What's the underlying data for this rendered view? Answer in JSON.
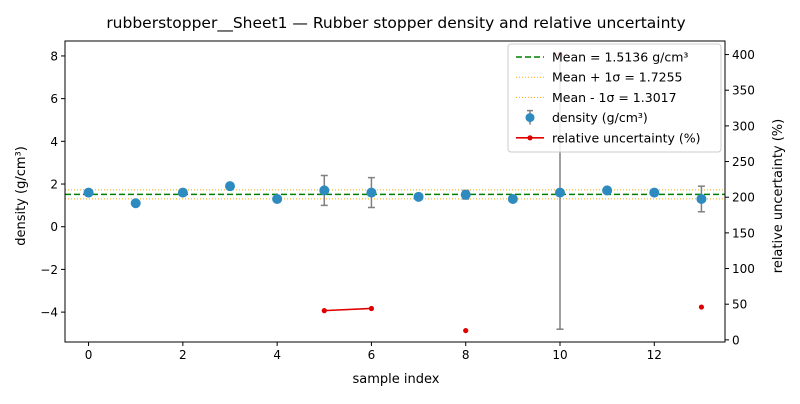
{
  "chart_data": {
    "type": "scatter",
    "title": "rubberstopper__Sheet1 — Rubber stopper density and relative uncertainty",
    "xlabel": "sample index",
    "ylabel": "density (g/cm³)",
    "y2label": "relative uncertainty (%)",
    "xlim": [
      -0.5,
      13.5
    ],
    "ylim": [
      -5.4,
      8.7
    ],
    "y2lim": [
      -3,
      419
    ],
    "x_ticks": [
      0,
      2,
      4,
      6,
      8,
      10,
      12
    ],
    "y_ticks": [
      -4,
      -2,
      0,
      2,
      4,
      6,
      8
    ],
    "y2_ticks": [
      0,
      50,
      100,
      150,
      200,
      250,
      300,
      350,
      400
    ],
    "grid": false,
    "legend_position": "top-right",
    "series": [
      {
        "name": "density (g/cm³)",
        "kind": "errorbar",
        "axis": "left",
        "color": "#2e8bc0",
        "error_color": "#808080",
        "x": [
          0,
          1,
          2,
          3,
          4,
          5,
          6,
          7,
          8,
          9,
          10,
          11,
          12,
          13
        ],
        "y": [
          1.6,
          1.1,
          1.6,
          1.9,
          1.3,
          1.7,
          1.6,
          1.4,
          1.5,
          1.3,
          1.6,
          1.7,
          1.6,
          1.3
        ],
        "yerr": [
          null,
          null,
          null,
          null,
          null,
          0.7,
          0.7,
          null,
          0.2,
          null,
          6.4,
          null,
          null,
          0.6
        ]
      },
      {
        "name": "relative uncertainty (%)",
        "kind": "line",
        "axis": "right",
        "color": "#e00000",
        "x": [
          0,
          1,
          2,
          3,
          4,
          5,
          6,
          7,
          8,
          9,
          10,
          11,
          12,
          13
        ],
        "y": [
          null,
          null,
          null,
          null,
          null,
          41,
          44,
          null,
          13,
          null,
          400,
          null,
          null,
          46
        ]
      }
    ],
    "reference_lines": [
      {
        "name": "Mean = 1.5136 g/cm³",
        "value": 1.5136,
        "color": "#008000",
        "style": "dashed"
      },
      {
        "name": "Mean + 1σ = 1.7255",
        "value": 1.7255,
        "color": "#ffa500",
        "style": "dotted"
      },
      {
        "name": "Mean - 1σ = 1.3017",
        "value": 1.3017,
        "color": "#ffa500",
        "style": "dotted"
      }
    ]
  }
}
